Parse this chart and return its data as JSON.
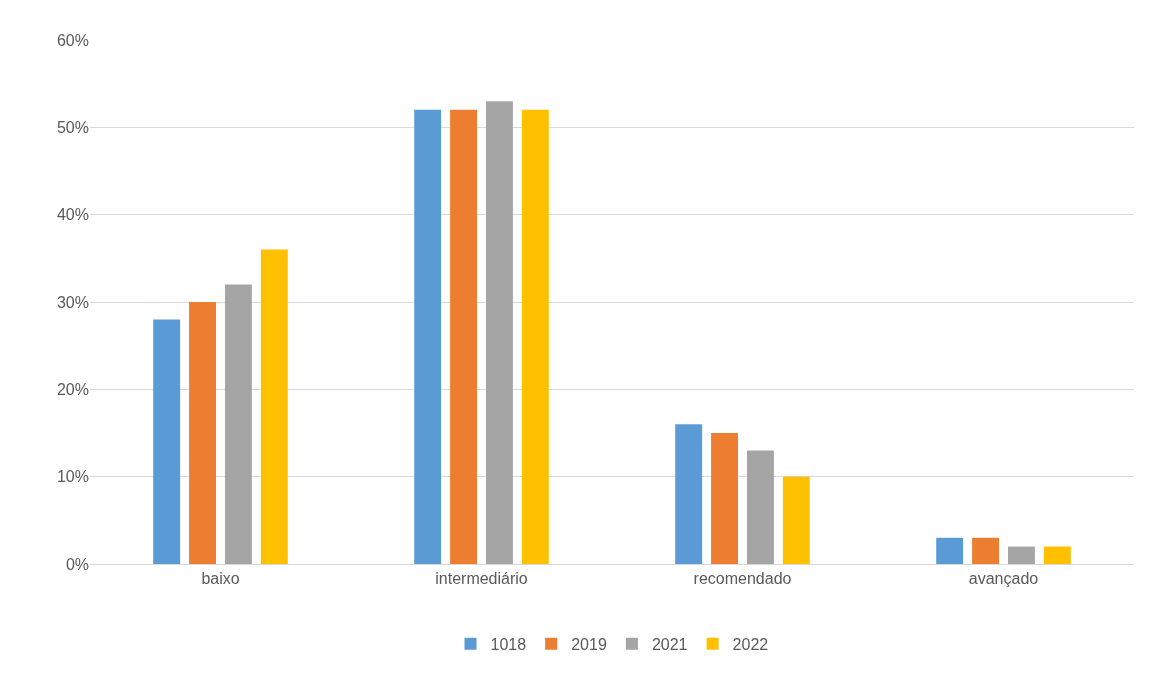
{
  "chart_data": {
    "type": "bar",
    "categories": [
      "baixo",
      "intermediário",
      "recomendado",
      "avançado"
    ],
    "series": [
      {
        "name": "1018",
        "color": "#5b9bd5",
        "values": [
          28,
          52,
          16,
          3
        ]
      },
      {
        "name": "2019",
        "color": "#ed7d31",
        "values": [
          30,
          52,
          15,
          3
        ]
      },
      {
        "name": "2021",
        "color": "#a5a5a5",
        "values": [
          32,
          53,
          13,
          2
        ]
      },
      {
        "name": "2022",
        "color": "#ffc000",
        "values": [
          36,
          52,
          10,
          2
        ]
      }
    ],
    "ylim": [
      0,
      60
    ],
    "yticks": [
      {
        "value": 0,
        "label": "0%"
      },
      {
        "value": 10,
        "label": "10%"
      },
      {
        "value": 20,
        "label": "20%"
      },
      {
        "value": 30,
        "label": "30%"
      },
      {
        "value": 40,
        "label": "40%"
      },
      {
        "value": 50,
        "label": "50%"
      },
      {
        "value": 60,
        "label": "60%"
      }
    ],
    "grid": "y",
    "legend": "bottom"
  }
}
